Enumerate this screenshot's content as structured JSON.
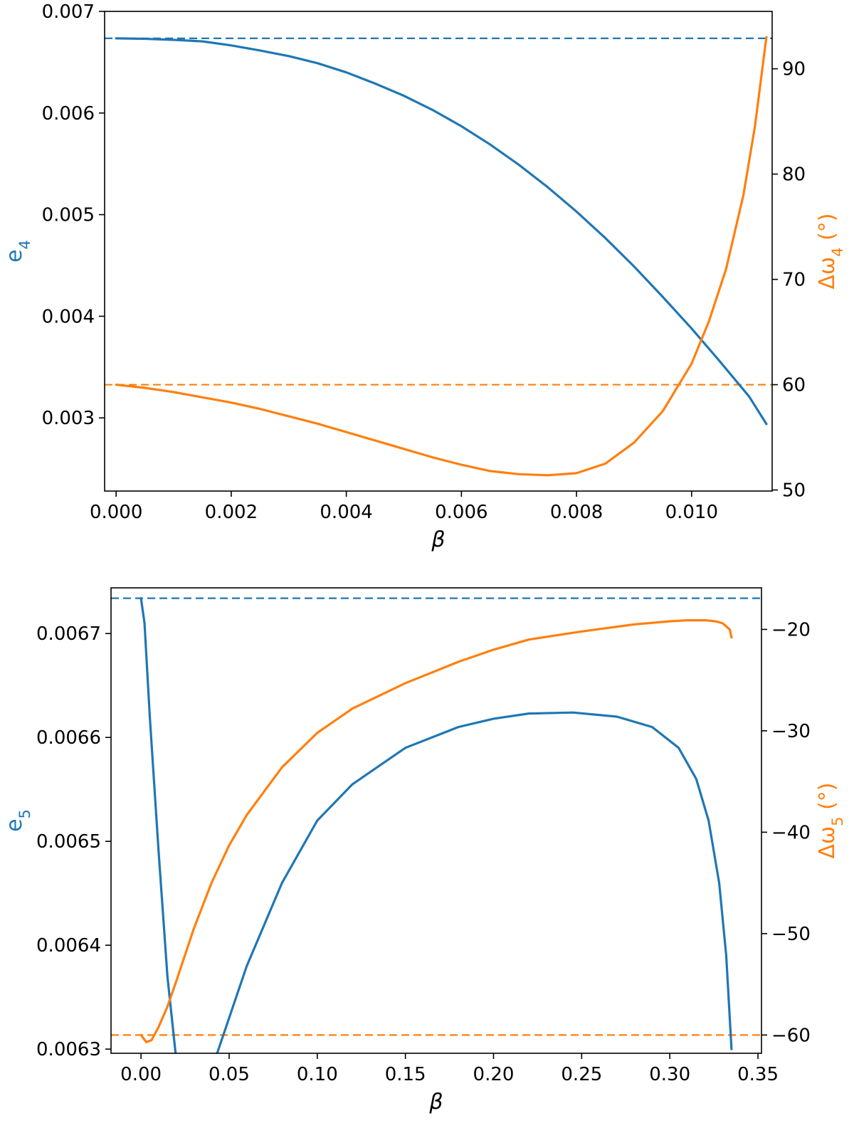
{
  "colors": {
    "blue": "#1f77b4",
    "orange": "#ff7f0e",
    "axis": "#000000"
  },
  "chart_data": [
    {
      "type": "line",
      "xlabel": "β",
      "ylabel_left": "e4",
      "ylabel_right": "Δω4 (°)",
      "xlim": [
        -0.0002,
        0.0114
      ],
      "ylim_left": [
        0.00228,
        0.007
      ],
      "ylim_right": [
        49.9,
        95.45
      ],
      "x_ticks": [
        0.0,
        0.002,
        0.004,
        0.006,
        0.008,
        0.01
      ],
      "x_tick_labels": [
        "0.000",
        "0.002",
        "0.004",
        "0.006",
        "0.008",
        "0.010"
      ],
      "y_left_ticks": [
        0.003,
        0.004,
        0.005,
        0.006,
        0.007
      ],
      "y_left_tick_labels": [
        "0.003",
        "0.004",
        "0.005",
        "0.006",
        "0.007"
      ],
      "y_right_ticks": [
        50,
        60,
        70,
        80,
        90
      ],
      "y_right_tick_labels": [
        "50",
        "60",
        "70",
        "80",
        "90"
      ],
      "series": [
        {
          "axis": "left",
          "color": "#1f77b4",
          "x": [
            0.0,
            0.0005,
            0.001,
            0.0015,
            0.002,
            0.0025,
            0.003,
            0.0035,
            0.004,
            0.0045,
            0.005,
            0.0055,
            0.006,
            0.0065,
            0.007,
            0.0075,
            0.008,
            0.0085,
            0.009,
            0.0095,
            0.01,
            0.0105,
            0.011,
            0.0113
          ],
          "y": [
            0.006735,
            0.00673,
            0.00672,
            0.006705,
            0.006665,
            0.006615,
            0.00656,
            0.00649,
            0.0064,
            0.00629,
            0.00617,
            0.00603,
            0.00587,
            0.00569,
            0.00549,
            0.00527,
            0.00503,
            0.00477,
            0.00449,
            0.00419,
            0.00388,
            0.00355,
            0.00321,
            0.00294
          ]
        },
        {
          "axis": "right",
          "color": "#ff7f0e",
          "x": [
            0.0,
            0.0005,
            0.001,
            0.0015,
            0.002,
            0.0025,
            0.003,
            0.0035,
            0.004,
            0.0045,
            0.005,
            0.0055,
            0.006,
            0.0065,
            0.007,
            0.0075,
            0.008,
            0.0085,
            0.009,
            0.0095,
            0.01,
            0.0103,
            0.0106,
            0.0109,
            0.0111,
            0.0113
          ],
          "y": [
            60.0,
            59.7,
            59.3,
            58.8,
            58.3,
            57.7,
            57.0,
            56.3,
            55.5,
            54.7,
            53.9,
            53.1,
            52.4,
            51.8,
            51.5,
            51.4,
            51.6,
            52.5,
            54.5,
            57.5,
            62.0,
            66.0,
            71.0,
            78.0,
            84.5,
            93.0
          ]
        }
      ],
      "reference_lines": [
        {
          "axis": "left",
          "value": 0.006735,
          "color": "#1f77b4",
          "style": "dashed"
        },
        {
          "axis": "right",
          "value": 60.0,
          "color": "#ff7f0e",
          "style": "dashed"
        }
      ]
    },
    {
      "type": "line",
      "xlabel": "β",
      "ylabel_left": "e5",
      "ylabel_right": "Δω5 (°)",
      "xlim": [
        -0.017,
        0.352
      ],
      "ylim_left": [
        0.006296,
        0.006744
      ],
      "ylim_right": [
        -61.8,
        -15.9
      ],
      "x_ticks": [
        0.0,
        0.05,
        0.1,
        0.15,
        0.2,
        0.25,
        0.3,
        0.35
      ],
      "x_tick_labels": [
        "0.00",
        "0.05",
        "0.10",
        "0.15",
        "0.20",
        "0.25",
        "0.30",
        "0.35"
      ],
      "y_left_ticks": [
        0.0063,
        0.0064,
        0.0065,
        0.0066,
        0.0067
      ],
      "y_left_tick_labels": [
        "0.0063",
        "0.0064",
        "0.0065",
        "0.0066",
        "0.0067"
      ],
      "y_right_ticks": [
        -60,
        -50,
        -40,
        -30,
        -20
      ],
      "y_right_tick_labels": [
        "−60",
        "−50",
        "−40",
        "−30",
        "−20"
      ],
      "series": [
        {
          "axis": "left",
          "color": "#1f77b4",
          "x": [
            0.0,
            0.002,
            0.005,
            0.01,
            0.015,
            0.02,
            0.025,
            0.03,
            0.035,
            0.04,
            0.05,
            0.06,
            0.08,
            0.1,
            0.12,
            0.15,
            0.18,
            0.2,
            0.22,
            0.245,
            0.27,
            0.29,
            0.305,
            0.315,
            0.322,
            0.328,
            0.332,
            0.335
          ],
          "y": [
            0.006734,
            0.00671,
            0.00662,
            0.00649,
            0.00637,
            0.00629,
            0.006255,
            0.00625,
            0.00626,
            0.00628,
            0.00633,
            0.00638,
            0.00646,
            0.00652,
            0.006555,
            0.00659,
            0.00661,
            0.006618,
            0.006623,
            0.006624,
            0.00662,
            0.00661,
            0.00659,
            0.00656,
            0.00652,
            0.00646,
            0.00639,
            0.0063
          ]
        },
        {
          "axis": "right",
          "color": "#ff7f0e",
          "x": [
            0.0,
            0.003,
            0.006,
            0.01,
            0.015,
            0.02,
            0.03,
            0.04,
            0.05,
            0.06,
            0.08,
            0.1,
            0.12,
            0.15,
            0.18,
            0.2,
            0.22,
            0.25,
            0.28,
            0.3,
            0.31,
            0.32,
            0.326,
            0.33,
            0.334,
            0.335
          ],
          "y": [
            -60.0,
            -60.7,
            -60.5,
            -59.2,
            -57.2,
            -54.7,
            -49.5,
            -45.0,
            -41.3,
            -38.3,
            -33.6,
            -30.2,
            -27.8,
            -25.3,
            -23.2,
            -22.0,
            -21.0,
            -20.2,
            -19.5,
            -19.2,
            -19.1,
            -19.1,
            -19.2,
            -19.4,
            -20.0,
            -20.8
          ]
        }
      ],
      "reference_lines": [
        {
          "axis": "left",
          "value": 0.006734,
          "color": "#1f77b4",
          "style": "dashed"
        },
        {
          "axis": "right",
          "value": -60.0,
          "color": "#ff7f0e",
          "style": "dashed"
        }
      ]
    }
  ]
}
